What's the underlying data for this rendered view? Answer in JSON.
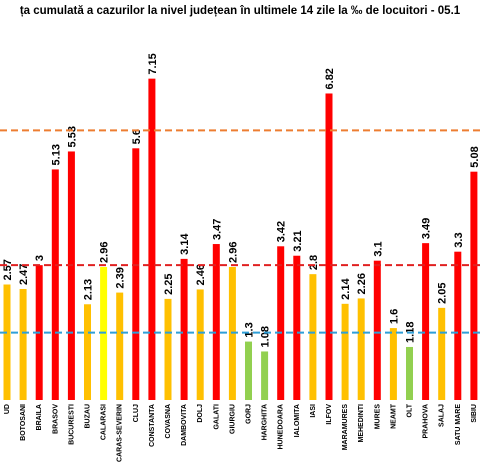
{
  "chart_data": {
    "type": "bar",
    "title": "ța cumulată a cazurilor la nivel județean în ultimele 14 zile   la ‰ de locuitori  - 05.1",
    "categories": [
      "UD",
      "BOTOSANI",
      "BRAILA",
      "BRASOV",
      "BUCURESTI",
      "BUZAU",
      "CALARASI",
      "CARAS-SEVERIN",
      "CLUJ",
      "CONSTANTA",
      "COVASNA",
      "DAMBOVITA",
      "DOLJ",
      "GALATI",
      "GIURGIU",
      "GORJ",
      "HARGHITA",
      "HUNEDOARA",
      "IALOMITA",
      "IASI",
      "ILFOV",
      "MARAMURES",
      "MEHEDINTI",
      "MURES",
      "NEAMT",
      "OLT",
      "PRAHOVA",
      "SALAJ",
      "SATU MARE",
      "SIBIU"
    ],
    "values": [
      2.57,
      2.47,
      3,
      5.13,
      5.53,
      2.13,
      2.96,
      2.39,
      5.6,
      7.15,
      2.25,
      3.14,
      2.46,
      3.47,
      2.96,
      1.3,
      1.08,
      3.42,
      3.21,
      2.8,
      6.82,
      2.14,
      2.26,
      3.1,
      1.6,
      1.18,
      3.49,
      2.05,
      3.3,
      5.08
    ],
    "colors": [
      "#ffc000",
      "#ffc000",
      "#ff0000",
      "#ff0000",
      "#ff0000",
      "#ffc000",
      "#ffff00",
      "#ffc000",
      "#ff0000",
      "#ff0000",
      "#ffc000",
      "#ff0000",
      "#ffc000",
      "#ff0000",
      "#ffc000",
      "#92d050",
      "#92d050",
      "#ff0000",
      "#ff0000",
      "#ffc000",
      "#ff0000",
      "#ffc000",
      "#ffc000",
      "#ff0000",
      "#ffc000",
      "#92d050",
      "#ff0000",
      "#ffc000",
      "#ff0000",
      "#ff0000"
    ],
    "reference_lines": [
      {
        "value": 6,
        "color": "#ed7d31"
      },
      {
        "value": 3,
        "color": "#e02020"
      },
      {
        "value": 1.5,
        "color": "#2e9fd8"
      }
    ],
    "ylim": [
      0,
      8.9
    ]
  }
}
